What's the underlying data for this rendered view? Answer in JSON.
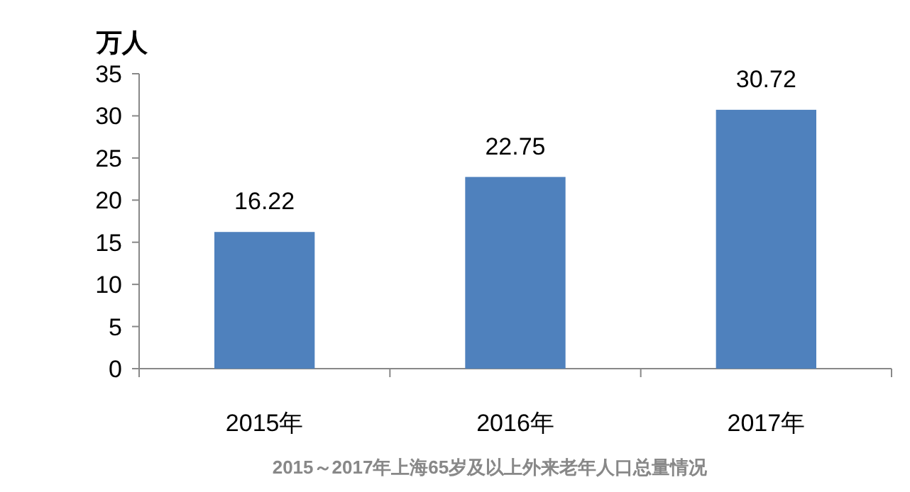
{
  "chart_data": {
    "type": "bar",
    "title": "2015～2017年上海65岁及以上外来老年人口总量情况",
    "ylabel": "万人",
    "categories": [
      "2015年",
      "2016年",
      "2017年"
    ],
    "values": [
      16.22,
      22.75,
      30.72
    ],
    "color": "#4f81bd",
    "ylim": [
      0,
      35
    ],
    "yticks": [
      0,
      5,
      10,
      15,
      20,
      25,
      30,
      35
    ],
    "data_labels": true
  }
}
